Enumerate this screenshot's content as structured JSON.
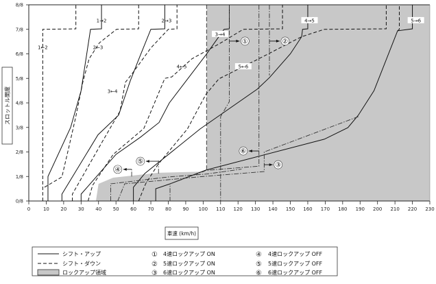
{
  "chart_data": {
    "type": "line",
    "title": "",
    "xlabel": "車速 (km/h)",
    "ylabel": "スロットル開度",
    "xlim": [
      0,
      230
    ],
    "ylim": [
      0,
      8
    ],
    "x_ticks": [
      "0",
      "10",
      "20",
      "30",
      "40",
      "50",
      "60",
      "70",
      "80",
      "90",
      "100",
      "110",
      "120",
      "130",
      "140",
      "150",
      "160",
      "170",
      "180",
      "190",
      "200",
      "210",
      "220",
      "230"
    ],
    "y_ticks": [
      "0/8",
      "1/8",
      "2/8",
      "3/8",
      "4/8",
      "5/8",
      "6/8",
      "7/8",
      "8/8"
    ],
    "y_units_note": "throttle in eighths",
    "lockup_region": [
      [
        102,
        8
      ],
      [
        230,
        8
      ],
      [
        230,
        0
      ],
      [
        38.5,
        0
      ],
      [
        40,
        0.7
      ],
      [
        48.4,
        0.95
      ],
      [
        74,
        1.15
      ],
      [
        102,
        1.2
      ],
      [
        102,
        8
      ]
    ],
    "series": [
      {
        "name": "1-2 up",
        "style": "solid",
        "points": [
          [
            11,
            0
          ],
          [
            11,
            1
          ],
          [
            24,
            3.0
          ],
          [
            30,
            4.5
          ],
          [
            35.4,
            7
          ],
          [
            41.7,
            7.02
          ],
          [
            41.7,
            8
          ]
        ]
      },
      {
        "name": "1-2 down",
        "style": "dashed",
        "points": [
          [
            8,
            0
          ],
          [
            8,
            7
          ],
          [
            27,
            7.02
          ],
          [
            27,
            8
          ]
        ]
      },
      {
        "name": "2-3 down",
        "style": "dashed",
        "points": [
          [
            9,
            0.56
          ],
          [
            19,
            0.98
          ],
          [
            23,
            2.2
          ],
          [
            27,
            3.45
          ],
          [
            31,
            4.85
          ],
          [
            34.6,
            5.8
          ],
          [
            40.5,
            6.45
          ],
          [
            50.3,
            7
          ],
          [
            63,
            7.02
          ],
          [
            63,
            8
          ]
        ]
      },
      {
        "name": "2-3 up",
        "style": "solid",
        "points": [
          [
            19,
            0
          ],
          [
            19,
            0.28
          ],
          [
            39.7,
            2.7
          ],
          [
            51.5,
            3.5
          ],
          [
            58.2,
            4.9
          ],
          [
            62.9,
            5.75
          ],
          [
            70,
            7
          ],
          [
            78,
            7.02
          ],
          [
            78,
            8
          ]
        ]
      },
      {
        "name": "3-4 down",
        "style": "dashed",
        "points": [
          [
            25,
            0
          ],
          [
            25,
            0.28
          ],
          [
            42.5,
            2.46
          ],
          [
            52.3,
            3.66
          ],
          [
            55.4,
            4.84
          ],
          [
            60,
            5.26
          ],
          [
            70,
            6.24
          ],
          [
            80,
            7
          ],
          [
            85,
            7.02
          ],
          [
            85,
            8
          ]
        ]
      },
      {
        "name": "3-4 up",
        "style": "solid",
        "points": [
          [
            30,
            0
          ],
          [
            30,
            0.28
          ],
          [
            50,
            1.9
          ],
          [
            64,
            2.6
          ],
          [
            74.7,
            3.2
          ],
          [
            80.6,
            4.0
          ],
          [
            92.4,
            5.1
          ],
          [
            101.5,
            5.95
          ],
          [
            112,
            7
          ],
          [
            115,
            7.02
          ],
          [
            115,
            8
          ]
        ]
      },
      {
        "name": "4-5 down",
        "style": "dashed",
        "points": [
          [
            34,
            0
          ],
          [
            36.6,
            0.64
          ],
          [
            48.4,
            1.9
          ],
          [
            66,
            2.96
          ],
          [
            78,
            5
          ],
          [
            82,
            5.06
          ],
          [
            93.6,
            5.8
          ],
          [
            109,
            6.4
          ],
          [
            123,
            7
          ],
          [
            145.5,
            7.02
          ],
          [
            145.5,
            8
          ]
        ]
      },
      {
        "name": "4-5 up",
        "style": "solid",
        "points": [
          [
            60,
            0
          ],
          [
            60,
            0.56
          ],
          [
            66.5,
            1.12
          ],
          [
            98.3,
            2.94
          ],
          [
            131,
            4.56
          ],
          [
            138,
            5.03
          ],
          [
            150,
            6.0
          ],
          [
            156.5,
            6.7
          ],
          [
            157,
            7
          ],
          [
            160,
            7.02
          ],
          [
            160,
            8
          ]
        ]
      },
      {
        "name": "5-6 down",
        "style": "dashed",
        "points": [
          [
            63,
            0
          ],
          [
            67,
            0.7
          ],
          [
            74,
            1.48
          ],
          [
            91,
            2.94
          ],
          [
            101.5,
            4.34
          ],
          [
            109,
            4.98
          ],
          [
            130,
            5.73
          ],
          [
            156.5,
            6.7
          ],
          [
            169.5,
            7
          ],
          [
            205,
            7.02
          ],
          [
            205,
            8
          ]
        ]
      },
      {
        "name": "5-6 up",
        "style": "solid",
        "points": [
          [
            72.8,
            0
          ],
          [
            72.8,
            0.5
          ],
          [
            81,
            0.7
          ],
          [
            101.5,
            1.26
          ],
          [
            169.5,
            2.52
          ],
          [
            183,
            2.99
          ],
          [
            189,
            3.5
          ],
          [
            198,
            4.5
          ],
          [
            211.5,
            6.94
          ],
          [
            220,
            7.02
          ],
          [
            220,
            8
          ]
        ]
      },
      {
        "name": "5-6 down top",
        "style": "dashed",
        "points": [
          [
            211.5,
            6.94
          ],
          [
            212.5,
            7
          ],
          [
            212.5,
            8
          ]
        ]
      },
      {
        "name": "4速ロックアップ ON",
        "style": "dashdot",
        "points": [
          [
            115,
            8
          ],
          [
            115,
            4.05
          ],
          [
            110,
            3.44
          ],
          [
            110,
            0
          ]
        ]
      },
      {
        "name": "5速ロックアップ ON",
        "style": "dashdot",
        "points": [
          [
            138,
            8
          ],
          [
            138,
            5.12
          ]
        ]
      },
      {
        "name": "6速ロックアップ ON",
        "style": "dashdot",
        "points": [
          [
            189,
            3.44
          ],
          [
            135,
            2.0
          ],
          [
            135,
            1.2
          ],
          [
            100,
            1.0
          ],
          [
            55,
            0.7
          ],
          [
            51,
            0
          ]
        ]
      },
      {
        "name": "6速ロックアップ OFF",
        "style": "dashdot",
        "points": [
          [
            132,
            8
          ],
          [
            132,
            1.42
          ],
          [
            102,
            1.25
          ],
          [
            81,
            0.7
          ],
          [
            81,
            0
          ]
        ]
      },
      {
        "name": "4速ロックアップ OFF",
        "style": "dashdot",
        "points": [
          [
            47,
            0
          ],
          [
            47,
            0.7
          ],
          [
            80,
            0.98
          ],
          [
            102,
            1.1
          ],
          [
            122,
            1.3
          ]
        ]
      },
      {
        "name": "4 off marker",
        "style": "dashdot",
        "points": [
          [
            59,
            1.0
          ],
          [
            59,
            1.29
          ]
        ]
      },
      {
        "name": "5速ロックアップ OFF",
        "style": "dashdot",
        "points": [
          [
            74.4,
            1.12
          ],
          [
            74.4,
            1.65
          ]
        ]
      }
    ],
    "shift_labels": [
      {
        "text": "1→2",
        "at": [
          41.7,
          7.36
        ]
      },
      {
        "text": "1←2",
        "at": [
          8,
          6.27
        ]
      },
      {
        "text": "2→3",
        "at": [
          79,
          7.36
        ]
      },
      {
        "text": "2←3",
        "at": [
          39.7,
          6.27
        ]
      },
      {
        "text": "3→4",
        "at": [
          109.7,
          6.8
        ]
      },
      {
        "text": "3←4",
        "at": [
          48,
          4.48
        ]
      },
      {
        "text": "4→5",
        "at": [
          161,
          7.36
        ]
      },
      {
        "text": "4←5",
        "at": [
          87.7,
          5.48
        ]
      },
      {
        "text": "5→6",
        "at": [
          222,
          7.36
        ]
      },
      {
        "text": "5←6",
        "at": [
          123,
          5.48
        ]
      }
    ],
    "lockup_markers": [
      {
        "text": "①",
        "at": [
          124,
          6.52
        ],
        "from": [
          115,
          6.52
        ]
      },
      {
        "text": "②",
        "at": [
          147,
          6.52
        ],
        "from": [
          138,
          6.52
        ]
      },
      {
        "text": "③",
        "at": [
          143,
          1.48
        ],
        "from": [
          135,
          1.48
        ]
      },
      {
        "text": "④",
        "at": [
          51,
          1.29
        ],
        "from": [
          59,
          1.29
        ]
      },
      {
        "text": "⑤",
        "at": [
          64,
          1.62
        ],
        "from": [
          74.4,
          1.62
        ]
      },
      {
        "text": "⑥",
        "at": [
          123,
          2.04
        ],
        "from": [
          132,
          2.04
        ]
      }
    ],
    "colors": {
      "lockup_fill": "#c8c8c8",
      "line": "#111111"
    }
  },
  "legend": {
    "shift_up": "シフト・アップ",
    "shift_down": "シフト・ダウン",
    "lockup_area": "ロックアップ領域",
    "items": [
      {
        "mark": "①",
        "label": "4速ロックアップ ON"
      },
      {
        "mark": "②",
        "label": "5速ロックアップ ON"
      },
      {
        "mark": "③",
        "label": "6速ロックアップ ON"
      },
      {
        "mark": "④",
        "label": "4速ロックアップ OFF"
      },
      {
        "mark": "⑤",
        "label": "5速ロックアップ OFF"
      },
      {
        "mark": "⑥",
        "label": "6速ロックアップ OFF"
      }
    ]
  }
}
